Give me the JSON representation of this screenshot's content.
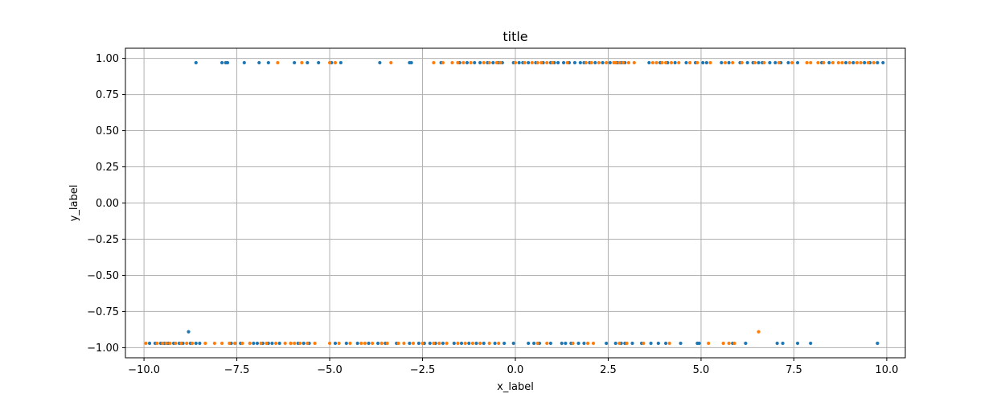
{
  "chart_data": {
    "type": "scatter",
    "title": "title",
    "xlabel": "x_label",
    "ylabel": "y_label",
    "xlim": [
      -10.5,
      10.5
    ],
    "ylim": [
      -1.07,
      1.07
    ],
    "grid": true,
    "x_ticks": [
      -10,
      -7.5,
      -5,
      -2.5,
      0,
      2.5,
      5,
      7.5,
      10
    ],
    "x_tick_labels": [
      "−10.0",
      "−7.5",
      "−5.0",
      "−2.5",
      "0.0",
      "2.5",
      "5.0",
      "7.5",
      "10.0"
    ],
    "y_ticks": [
      1,
      0.75,
      0.5,
      0.25,
      0,
      -0.25,
      -0.5,
      -0.75,
      -1
    ],
    "y_tick_labels": [
      "1.00",
      "0.75",
      "0.50",
      "0.25",
      "0.00",
      "−0.25",
      "−0.50",
      "−0.75",
      "−1.00"
    ],
    "series": [
      {
        "color": "#1f77b4",
        "points": [
          [
            -8.6,
            0.97
          ],
          [
            -7.9,
            0.97
          ],
          [
            -7.8,
            0.97
          ],
          [
            -7.75,
            0.97
          ],
          [
            -7.3,
            0.97
          ],
          [
            -6.9,
            0.97
          ],
          [
            -6.65,
            0.97
          ],
          [
            -5.95,
            0.97
          ],
          [
            -5.6,
            0.97
          ],
          [
            -5.3,
            0.97
          ],
          [
            -4.95,
            0.97
          ],
          [
            -4.7,
            0.97
          ],
          [
            -3.65,
            0.97
          ],
          [
            -2.85,
            0.97
          ],
          [
            -2.8,
            0.97
          ],
          [
            -2.0,
            0.97
          ],
          [
            -1.5,
            0.97
          ],
          [
            -1.3,
            0.97
          ],
          [
            -1.1,
            0.97
          ],
          [
            -0.95,
            0.97
          ],
          [
            -0.75,
            0.97
          ],
          [
            -0.6,
            0.97
          ],
          [
            -0.45,
            0.97
          ],
          [
            -0.35,
            0.97
          ],
          [
            -0.05,
            0.97
          ],
          [
            0.1,
            0.97
          ],
          [
            0.2,
            0.97
          ],
          [
            0.35,
            0.97
          ],
          [
            0.55,
            0.97
          ],
          [
            0.75,
            0.97
          ],
          [
            0.95,
            0.97
          ],
          [
            1.05,
            0.97
          ],
          [
            1.15,
            0.97
          ],
          [
            1.3,
            0.97
          ],
          [
            1.45,
            0.97
          ],
          [
            1.6,
            0.97
          ],
          [
            1.75,
            0.97
          ],
          [
            1.85,
            0.97
          ],
          [
            2.0,
            0.97
          ],
          [
            2.15,
            0.97
          ],
          [
            2.35,
            0.97
          ],
          [
            2.55,
            0.97
          ],
          [
            2.75,
            0.97
          ],
          [
            2.85,
            0.97
          ],
          [
            2.95,
            0.97
          ],
          [
            3.6,
            0.97
          ],
          [
            3.9,
            0.97
          ],
          [
            4.1,
            0.97
          ],
          [
            4.3,
            0.97
          ],
          [
            4.6,
            0.97
          ],
          [
            4.85,
            0.97
          ],
          [
            5.05,
            0.97
          ],
          [
            5.15,
            0.97
          ],
          [
            5.55,
            0.97
          ],
          [
            5.75,
            0.97
          ],
          [
            6.05,
            0.97
          ],
          [
            6.25,
            0.97
          ],
          [
            6.4,
            0.97
          ],
          [
            6.55,
            0.97
          ],
          [
            6.65,
            0.97
          ],
          [
            6.85,
            0.97
          ],
          [
            7.0,
            0.97
          ],
          [
            7.15,
            0.97
          ],
          [
            7.35,
            0.97
          ],
          [
            7.6,
            0.97
          ],
          [
            8.25,
            0.97
          ],
          [
            8.45,
            0.97
          ],
          [
            8.9,
            0.97
          ],
          [
            9.1,
            0.97
          ],
          [
            9.4,
            0.97
          ],
          [
            9.55,
            0.97
          ],
          [
            9.75,
            0.97
          ],
          [
            9.9,
            0.97
          ],
          [
            -8.8,
            -0.89
          ],
          [
            -9.85,
            -0.97
          ],
          [
            -9.7,
            -0.97
          ],
          [
            -9.55,
            -0.97
          ],
          [
            -9.45,
            -0.97
          ],
          [
            -9.35,
            -0.97
          ],
          [
            -9.2,
            -0.97
          ],
          [
            -9.05,
            -0.97
          ],
          [
            -8.95,
            -0.97
          ],
          [
            -8.75,
            -0.97
          ],
          [
            -8.6,
            -0.97
          ],
          [
            -8.5,
            -0.97
          ],
          [
            -7.65,
            -0.97
          ],
          [
            -7.55,
            -0.97
          ],
          [
            -7.4,
            -0.97
          ],
          [
            -7.05,
            -0.97
          ],
          [
            -6.95,
            -0.97
          ],
          [
            -6.8,
            -0.97
          ],
          [
            -6.65,
            -0.97
          ],
          [
            -6.55,
            -0.97
          ],
          [
            -6.35,
            -0.97
          ],
          [
            -6.05,
            -0.97
          ],
          [
            -5.85,
            -0.97
          ],
          [
            -5.7,
            -0.97
          ],
          [
            -5.55,
            -0.97
          ],
          [
            -4.85,
            -0.97
          ],
          [
            -4.55,
            -0.97
          ],
          [
            -4.25,
            -0.97
          ],
          [
            -3.95,
            -0.97
          ],
          [
            -3.7,
            -0.97
          ],
          [
            -3.5,
            -0.97
          ],
          [
            -3.2,
            -0.97
          ],
          [
            -2.85,
            -0.97
          ],
          [
            -2.6,
            -0.97
          ],
          [
            -2.45,
            -0.97
          ],
          [
            -2.3,
            -0.97
          ],
          [
            -2.15,
            -0.97
          ],
          [
            -1.95,
            -0.97
          ],
          [
            -1.65,
            -0.97
          ],
          [
            -1.45,
            -0.97
          ],
          [
            -1.25,
            -0.97
          ],
          [
            -1.05,
            -0.97
          ],
          [
            -0.85,
            -0.97
          ],
          [
            -0.55,
            -0.97
          ],
          [
            -0.3,
            -0.97
          ],
          [
            -0.05,
            -0.97
          ],
          [
            0.35,
            -0.97
          ],
          [
            0.5,
            -0.97
          ],
          [
            0.65,
            -0.97
          ],
          [
            0.95,
            -0.97
          ],
          [
            1.25,
            -0.97
          ],
          [
            1.35,
            -0.97
          ],
          [
            1.5,
            -0.97
          ],
          [
            1.7,
            -0.97
          ],
          [
            1.85,
            -0.97
          ],
          [
            2.45,
            -0.97
          ],
          [
            2.7,
            -0.97
          ],
          [
            2.85,
            -0.97
          ],
          [
            2.95,
            -0.97
          ],
          [
            3.15,
            -0.97
          ],
          [
            3.4,
            -0.97
          ],
          [
            3.65,
            -0.97
          ],
          [
            3.85,
            -0.97
          ],
          [
            4.05,
            -0.97
          ],
          [
            4.45,
            -0.97
          ],
          [
            4.9,
            -0.97
          ],
          [
            4.95,
            -0.97
          ],
          [
            5.85,
            -0.97
          ],
          [
            6.2,
            -0.97
          ],
          [
            7.05,
            -0.97
          ],
          [
            7.2,
            -0.97
          ],
          [
            7.6,
            -0.97
          ],
          [
            7.95,
            -0.97
          ],
          [
            9.75,
            -0.97
          ]
        ]
      },
      {
        "color": "#ff7f0e",
        "points": [
          [
            -6.4,
            0.97
          ],
          [
            -5.75,
            0.97
          ],
          [
            -5.0,
            0.97
          ],
          [
            -4.85,
            0.97
          ],
          [
            -3.35,
            0.97
          ],
          [
            -2.2,
            0.97
          ],
          [
            -1.95,
            0.97
          ],
          [
            -1.7,
            0.97
          ],
          [
            -1.55,
            0.97
          ],
          [
            -1.4,
            0.97
          ],
          [
            -1.2,
            0.97
          ],
          [
            -0.85,
            0.97
          ],
          [
            -0.7,
            0.97
          ],
          [
            -0.5,
            0.97
          ],
          [
            -0.4,
            0.97
          ],
          [
            0.0,
            0.97
          ],
          [
            0.25,
            0.97
          ],
          [
            0.45,
            0.97
          ],
          [
            0.6,
            0.97
          ],
          [
            0.7,
            0.97
          ],
          [
            0.85,
            0.97
          ],
          [
            1.0,
            0.97
          ],
          [
            1.4,
            0.97
          ],
          [
            1.9,
            0.97
          ],
          [
            2.05,
            0.97
          ],
          [
            2.25,
            0.97
          ],
          [
            2.45,
            0.97
          ],
          [
            2.65,
            0.97
          ],
          [
            2.7,
            0.97
          ],
          [
            2.8,
            0.97
          ],
          [
            2.9,
            0.97
          ],
          [
            3.05,
            0.97
          ],
          [
            3.2,
            0.97
          ],
          [
            3.7,
            0.97
          ],
          [
            3.8,
            0.97
          ],
          [
            3.95,
            0.97
          ],
          [
            4.05,
            0.97
          ],
          [
            4.2,
            0.97
          ],
          [
            4.4,
            0.97
          ],
          [
            4.7,
            0.97
          ],
          [
            4.9,
            0.97
          ],
          [
            5.25,
            0.97
          ],
          [
            5.65,
            0.97
          ],
          [
            5.85,
            0.97
          ],
          [
            6.1,
            0.97
          ],
          [
            6.45,
            0.97
          ],
          [
            6.7,
            0.97
          ],
          [
            7.1,
            0.97
          ],
          [
            7.45,
            0.97
          ],
          [
            7.85,
            0.97
          ],
          [
            7.95,
            0.97
          ],
          [
            8.15,
            0.97
          ],
          [
            8.3,
            0.97
          ],
          [
            8.55,
            0.97
          ],
          [
            8.7,
            0.97
          ],
          [
            8.8,
            0.97
          ],
          [
            9.0,
            0.97
          ],
          [
            9.2,
            0.97
          ],
          [
            9.3,
            0.97
          ],
          [
            9.5,
            0.97
          ],
          [
            9.65,
            0.97
          ],
          [
            6.55,
            -0.89
          ],
          [
            -9.95,
            -0.97
          ],
          [
            -9.65,
            -0.97
          ],
          [
            -9.5,
            -0.97
          ],
          [
            -9.4,
            -0.97
          ],
          [
            -9.3,
            -0.97
          ],
          [
            -9.15,
            -0.97
          ],
          [
            -9.0,
            -0.97
          ],
          [
            -8.85,
            -0.97
          ],
          [
            -8.7,
            -0.97
          ],
          [
            -8.35,
            -0.97
          ],
          [
            -8.1,
            -0.97
          ],
          [
            -7.9,
            -0.97
          ],
          [
            -7.7,
            -0.97
          ],
          [
            -7.55,
            -0.97
          ],
          [
            -7.35,
            -0.97
          ],
          [
            -7.15,
            -0.97
          ],
          [
            -6.85,
            -0.97
          ],
          [
            -6.7,
            -0.97
          ],
          [
            -6.45,
            -0.97
          ],
          [
            -6.2,
            -0.97
          ],
          [
            -6.05,
            -0.97
          ],
          [
            -5.95,
            -0.97
          ],
          [
            -5.8,
            -0.97
          ],
          [
            -5.6,
            -0.97
          ],
          [
            -5.4,
            -0.97
          ],
          [
            -5.0,
            -0.97
          ],
          [
            -4.75,
            -0.97
          ],
          [
            -4.45,
            -0.97
          ],
          [
            -4.15,
            -0.97
          ],
          [
            -4.05,
            -0.97
          ],
          [
            -3.85,
            -0.97
          ],
          [
            -3.6,
            -0.97
          ],
          [
            -3.45,
            -0.97
          ],
          [
            -3.15,
            -0.97
          ],
          [
            -3.0,
            -0.97
          ],
          [
            -2.75,
            -0.97
          ],
          [
            -2.5,
            -0.97
          ],
          [
            -2.2,
            -0.97
          ],
          [
            -2.05,
            -0.97
          ],
          [
            -1.85,
            -0.97
          ],
          [
            -1.55,
            -0.97
          ],
          [
            -1.35,
            -0.97
          ],
          [
            -1.15,
            -0.97
          ],
          [
            -0.95,
            -0.97
          ],
          [
            -0.7,
            -0.97
          ],
          [
            -0.45,
            -0.97
          ],
          [
            0.6,
            -0.97
          ],
          [
            0.85,
            -0.97
          ],
          [
            1.55,
            -0.97
          ],
          [
            1.95,
            -0.97
          ],
          [
            2.1,
            -0.97
          ],
          [
            2.8,
            -0.97
          ],
          [
            3.0,
            -0.97
          ],
          [
            3.45,
            -0.97
          ],
          [
            4.15,
            -0.97
          ],
          [
            5.2,
            -0.97
          ],
          [
            5.6,
            -0.97
          ],
          [
            5.75,
            -0.97
          ],
          [
            5.9,
            -0.97
          ]
        ]
      }
    ]
  }
}
